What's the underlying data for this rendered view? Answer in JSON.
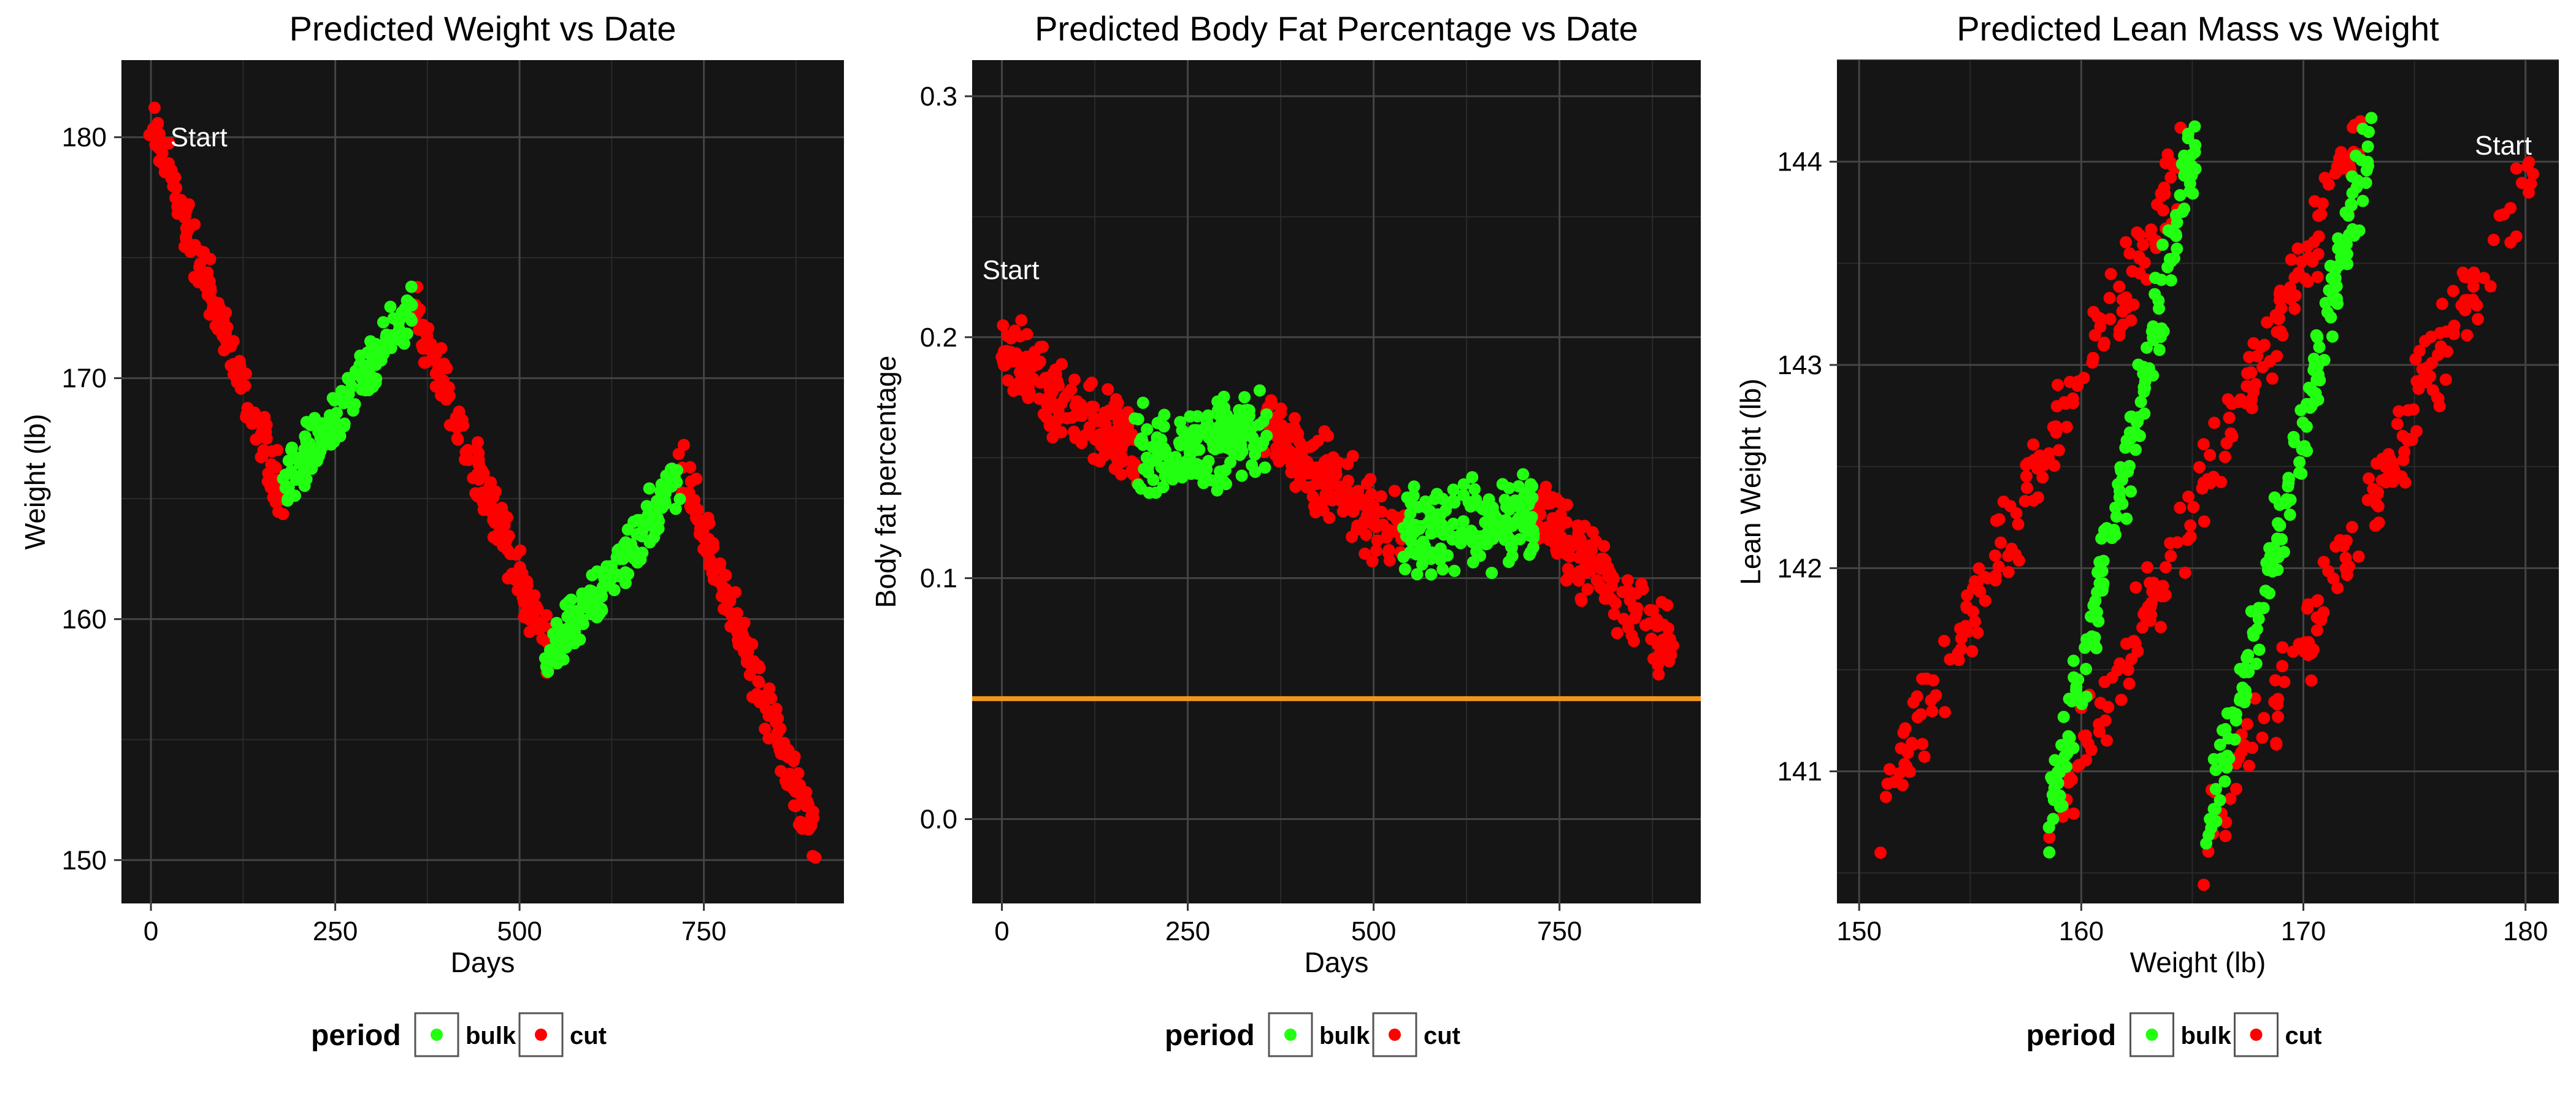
{
  "legend": {
    "title": "period",
    "entries": [
      "bulk",
      "cut"
    ]
  },
  "colors": {
    "bulk": "#22ff11",
    "cut": "#ff0000",
    "panel": "#151515",
    "grid": "#444444",
    "target_line": "#f0961e",
    "annotation": "#ffffff"
  },
  "chart_data": [
    {
      "type": "scatter",
      "title": "Predicted Weight vs Date",
      "xlabel": "Days",
      "ylabel": "Weight (lb)",
      "xlim": [
        -40,
        940
      ],
      "ylim": [
        148.2,
        183.2
      ],
      "x_ticks": [
        0,
        250,
        500,
        750
      ],
      "y_ticks": [
        150,
        160,
        170,
        180
      ],
      "grid": true,
      "legend_position": "bottom",
      "annotation": {
        "text": "Start",
        "x": 65,
        "y": 180
      },
      "series": [
        {
          "name": "cut",
          "color": "#ff0000",
          "band": 1.4,
          "segments": [
            {
              "x": [
                0,
                180
              ],
              "y": [
                180.5,
                165
              ]
            },
            {
              "x": [
                355,
                545
              ],
              "y": [
                173,
                158.2
              ]
            },
            {
              "x": [
                715,
                900
              ],
              "y": [
                166.5,
                151
              ]
            }
          ]
        },
        {
          "name": "bulk",
          "color": "#22ff11",
          "band": 1.4,
          "segments": [
            {
              "x": [
                180,
                355
              ],
              "y": [
                165.5,
                173
              ]
            },
            {
              "x": [
                535,
                715
              ],
              "y": [
                158.2,
                165.8
              ]
            }
          ]
        }
      ]
    },
    {
      "type": "scatter",
      "title": "Predicted Body Fat Percentage vs Date",
      "xlabel": "Days",
      "ylabel": "Body fat percentage",
      "xlim": [
        -40,
        940
      ],
      "ylim": [
        -0.035,
        0.315
      ],
      "x_ticks": [
        0,
        250,
        500,
        750
      ],
      "y_ticks": [
        0.0,
        0.1,
        0.2,
        0.3
      ],
      "y_tick_labels": [
        "0.0",
        "0.1",
        "0.2",
        "0.3"
      ],
      "grid": true,
      "legend_position": "bottom",
      "annotation": {
        "text": "Start",
        "x": 12,
        "y": 0.228
      },
      "hline": {
        "y": 0.05,
        "color": "#f0961e"
      },
      "series": [
        {
          "name": "cut",
          "color": "#ff0000",
          "band": 0.02,
          "segments": [
            {
              "x": [
                0,
                180
              ],
              "y": [
                0.195,
                0.15
              ]
            },
            {
              "x": [
                355,
                540
              ],
              "y": [
                0.162,
                0.115
              ]
            },
            {
              "x": [
                715,
                900
              ],
              "y": [
                0.128,
                0.072
              ]
            }
          ]
        },
        {
          "name": "bulk",
          "color": "#22ff11",
          "band": 0.022,
          "segments": [
            {
              "x": [
                180,
                355
              ],
              "y": [
                0.152,
                0.16
              ]
            },
            {
              "x": [
                540,
                715
              ],
              "y": [
                0.118,
                0.126
              ]
            }
          ]
        }
      ]
    },
    {
      "type": "scatter",
      "title": "Predicted Lean Mass vs Weight",
      "xlabel": "Weight (lb)",
      "ylabel": "Lean Weight (lb)",
      "xlim": [
        149,
        181.5
      ],
      "ylim": [
        140.35,
        144.5
      ],
      "x_ticks": [
        150,
        160,
        170,
        180
      ],
      "y_ticks": [
        141,
        142,
        143,
        144
      ],
      "grid": true,
      "legend_position": "bottom",
      "annotation": {
        "text": "Start",
        "x": 179,
        "y": 144.08
      },
      "series": [
        {
          "name": "cut",
          "color": "#ff0000",
          "band": 0.28,
          "segments": [
            {
              "x": [
                151,
                165
              ],
              "y": [
                140.8,
                144.1
              ]
            },
            {
              "x": [
                158.5,
                172.5
              ],
              "y": [
                140.7,
                144.1
              ]
            },
            {
              "x": [
                165.5,
                180.5
              ],
              "y": [
                140.6,
                144
              ]
            }
          ]
        },
        {
          "name": "bulk",
          "color": "#22ff11",
          "band": 0.25,
          "segments": [
            {
              "x": [
                158.5,
                165.3
              ],
              "y": [
                140.7,
                144.2
              ]
            },
            {
              "x": [
                165.5,
                173
              ],
              "y": [
                140.6,
                144.1
              ]
            }
          ]
        }
      ]
    }
  ]
}
